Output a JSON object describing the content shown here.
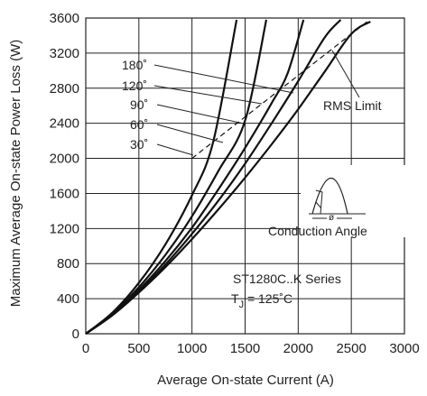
{
  "chart_data": {
    "type": "line",
    "xlabel": "Average On-state Current (A)",
    "ylabel": "Maximum Average On-state Power Loss (W)",
    "xlim": [
      0,
      3000
    ],
    "ylim": [
      0,
      3600
    ],
    "xticks": [
      "0",
      "500",
      "1000",
      "1500",
      "2000",
      "2500",
      "3000"
    ],
    "yticks": [
      "0",
      "400",
      "800",
      "1200",
      "1600",
      "2000",
      "2400",
      "2800",
      "3200",
      "3600"
    ],
    "grid": true,
    "series": [
      {
        "name": "180˚",
        "x": [
          0,
          250,
          500,
          750,
          1000,
          1250,
          1500,
          1750,
          2000,
          2250,
          2500,
          2680
        ],
        "y": [
          0,
          210,
          470,
          760,
          1080,
          1420,
          1780,
          2160,
          2560,
          2990,
          3420,
          3560
        ]
      },
      {
        "name": "120˚",
        "x": [
          0,
          250,
          500,
          750,
          1000,
          1250,
          1500,
          1750,
          2000,
          2250,
          2400
        ],
        "y": [
          0,
          215,
          480,
          790,
          1140,
          1520,
          1940,
          2400,
          2880,
          3380,
          3580
        ]
      },
      {
        "name": "90˚",
        "x": [
          0,
          250,
          500,
          750,
          1000,
          1250,
          1500,
          1750,
          1900,
          2050
        ],
        "y": [
          0,
          220,
          500,
          830,
          1210,
          1650,
          2120,
          2630,
          2970,
          3580
        ]
      },
      {
        "name": "60˚",
        "x": [
          0,
          250,
          500,
          750,
          1000,
          1250,
          1500,
          1700
        ],
        "y": [
          0,
          230,
          530,
          900,
          1340,
          1860,
          2430,
          3580
        ]
      },
      {
        "name": "30˚",
        "x": [
          0,
          250,
          500,
          750,
          1000,
          1200,
          1420
        ],
        "y": [
          0,
          240,
          580,
          1020,
          1580,
          2190,
          3580
        ]
      }
    ],
    "rms_limit": {
      "label": "RMS Limit",
      "x": [
        1000,
        2650
      ],
      "y": [
        2000,
        3560
      ]
    },
    "annotations": {
      "inset_label": "Conduction Angle",
      "inset_symbol": "ø",
      "series_label": "ST1280C..K Series",
      "temp_prefix": "T",
      "temp_sub": "J",
      "temp_value": " = 125˚C"
    }
  }
}
